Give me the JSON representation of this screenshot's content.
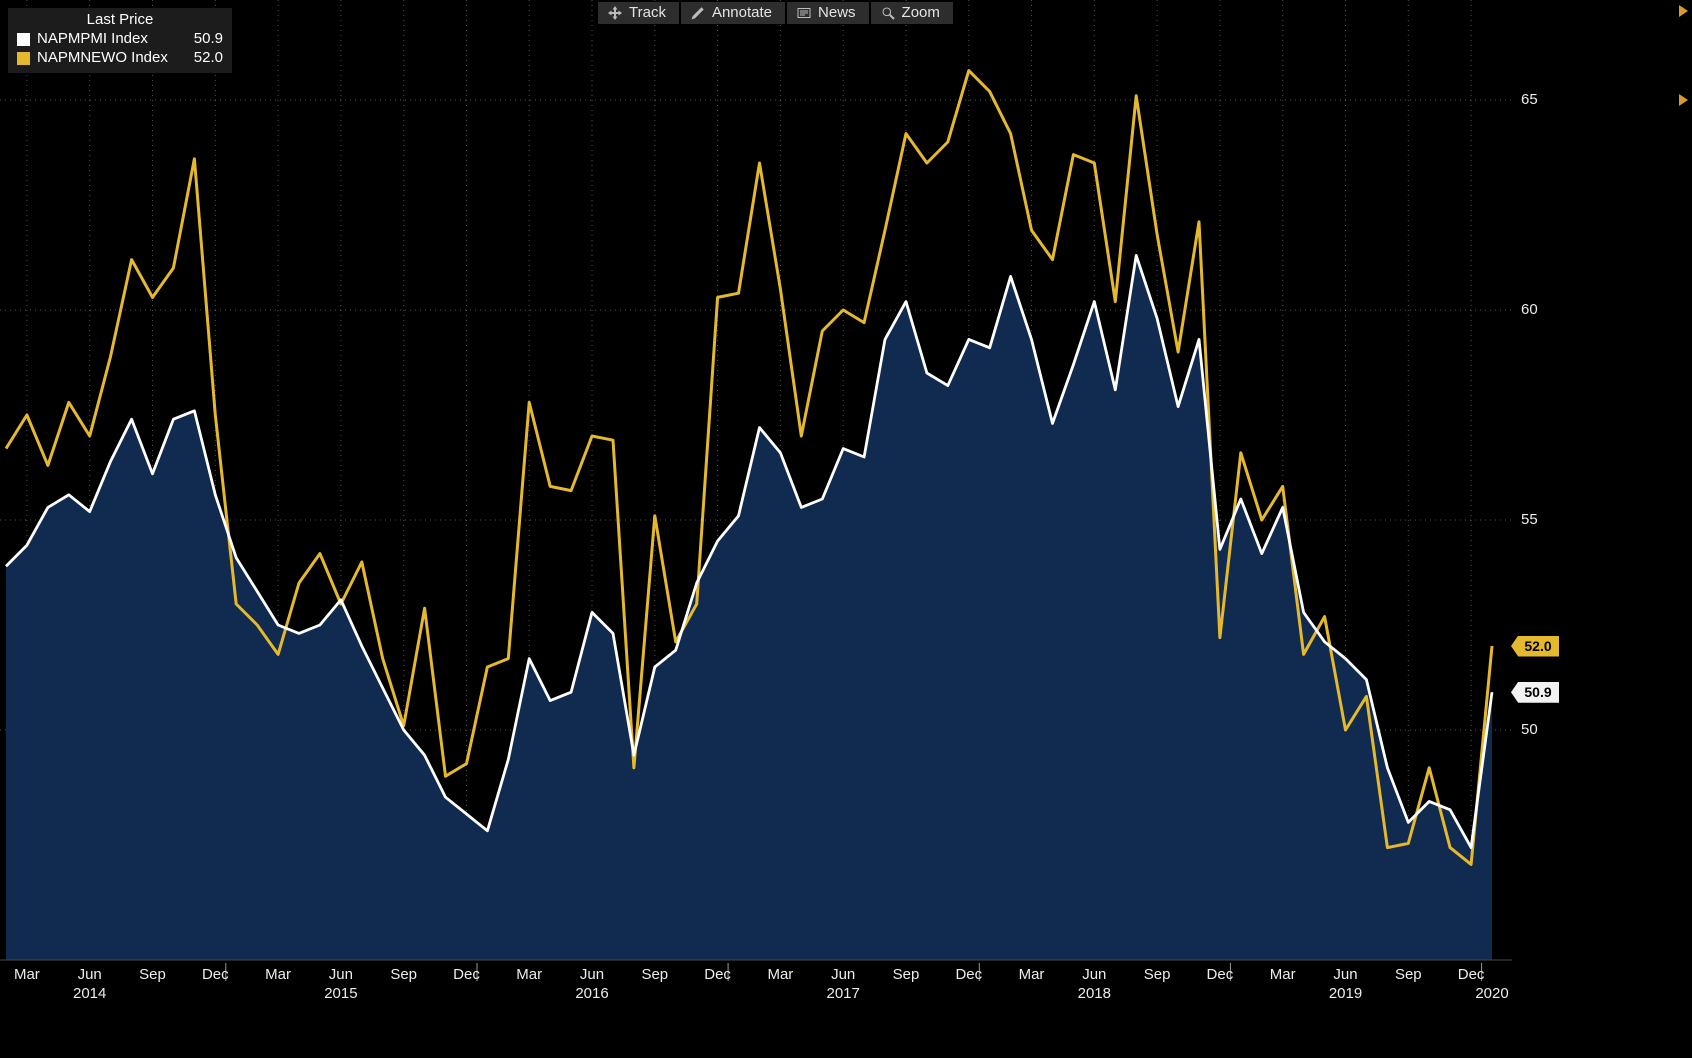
{
  "toolbar": {
    "buttons": [
      {
        "label": "Track",
        "icon": "track-icon"
      },
      {
        "label": "Annotate",
        "icon": "annotate-icon"
      },
      {
        "label": "News",
        "icon": "news-icon"
      },
      {
        "label": "Zoom",
        "icon": "zoom-icon"
      }
    ]
  },
  "legend": {
    "title": "Last Price",
    "series": [
      {
        "name": "NAPMPMI Index",
        "value": "50.9",
        "swatch": "#ffffff"
      },
      {
        "name": "NAPMNEWO Index",
        "value": "52.0",
        "swatch": "#e5b92d"
      }
    ]
  },
  "y_axis": {
    "ticks": [
      65,
      60,
      55,
      50
    ]
  },
  "x_axis": {
    "quarter_labels": [
      "Mar",
      "Jun",
      "Sep",
      "Dec"
    ],
    "years": [
      "2014",
      "2015",
      "2016",
      "2017",
      "2018",
      "2019",
      "2020"
    ]
  },
  "badges": [
    {
      "text": "52.0",
      "bg": "#e5b92d",
      "fg": "#000000"
    },
    {
      "text": "50.9",
      "bg": "#f2f2f2",
      "fg": "#000000"
    }
  ],
  "chart_data": {
    "type": "line",
    "title": "",
    "grid": "dotted",
    "legend_position": "top-left",
    "background": "#000000",
    "yticks": [
      50,
      55,
      60,
      65
    ],
    "ylim": [
      44.5,
      67.4
    ],
    "x_monthly_start": "2014-02",
    "x_monthly_end": "2020-01",
    "months": [
      "2014-02",
      "2014-03",
      "2014-04",
      "2014-05",
      "2014-06",
      "2014-07",
      "2014-08",
      "2014-09",
      "2014-10",
      "2014-11",
      "2014-12",
      "2015-01",
      "2015-02",
      "2015-03",
      "2015-04",
      "2015-05",
      "2015-06",
      "2015-07",
      "2015-08",
      "2015-09",
      "2015-10",
      "2015-11",
      "2015-12",
      "2016-01",
      "2016-02",
      "2016-03",
      "2016-04",
      "2016-05",
      "2016-06",
      "2016-07",
      "2016-08",
      "2016-09",
      "2016-10",
      "2016-11",
      "2016-12",
      "2017-01",
      "2017-02",
      "2017-03",
      "2017-04",
      "2017-05",
      "2017-06",
      "2017-07",
      "2017-08",
      "2017-09",
      "2017-10",
      "2017-11",
      "2017-12",
      "2018-01",
      "2018-02",
      "2018-03",
      "2018-04",
      "2018-05",
      "2018-06",
      "2018-07",
      "2018-08",
      "2018-09",
      "2018-10",
      "2018-11",
      "2018-12",
      "2019-01",
      "2019-02",
      "2019-03",
      "2019-04",
      "2019-05",
      "2019-06",
      "2019-07",
      "2019-08",
      "2019-09",
      "2019-10",
      "2019-11",
      "2019-12",
      "2020-01"
    ],
    "series": [
      {
        "name": "NAPMPMI Index",
        "color": "#ffffff",
        "fill": "#122c52",
        "last": 50.9,
        "values": [
          53.9,
          54.4,
          55.3,
          55.6,
          55.2,
          56.4,
          57.4,
          56.1,
          57.4,
          57.6,
          55.6,
          54.1,
          53.3,
          52.5,
          52.3,
          52.5,
          53.1,
          52.0,
          51.0,
          50.0,
          49.4,
          48.4,
          48.0,
          47.6,
          49.3,
          51.7,
          50.7,
          50.9,
          52.8,
          52.3,
          49.4,
          51.5,
          51.9,
          53.5,
          54.5,
          55.1,
          57.2,
          56.6,
          55.3,
          55.5,
          56.7,
          56.5,
          59.3,
          60.2,
          58.5,
          58.2,
          59.3,
          59.1,
          60.8,
          59.3,
          57.3,
          58.7,
          60.2,
          58.1,
          61.3,
          59.8,
          57.7,
          59.3,
          54.3,
          55.5,
          54.2,
          55.3,
          52.8,
          52.1,
          51.7,
          51.2,
          49.1,
          47.8,
          48.3,
          48.1,
          47.2,
          50.9
        ]
      },
      {
        "name": "NAPMNEWO Index",
        "color": "#e5b92d",
        "fill": null,
        "last": 52.0,
        "values": [
          56.7,
          57.5,
          56.3,
          57.8,
          57.0,
          58.9,
          61.2,
          60.3,
          61.0,
          63.6,
          57.5,
          53.0,
          52.5,
          51.8,
          53.5,
          54.2,
          53.0,
          54.0,
          51.7,
          50.1,
          52.9,
          48.9,
          49.2,
          51.5,
          51.7,
          57.8,
          55.8,
          55.7,
          57.0,
          56.9,
          49.1,
          55.1,
          52.1,
          53.0,
          60.3,
          60.4,
          63.5,
          60.5,
          57.0,
          59.5,
          60.0,
          59.7,
          61.9,
          64.2,
          63.5,
          64.0,
          65.7,
          65.2,
          64.2,
          61.9,
          61.2,
          63.7,
          63.5,
          60.2,
          65.1,
          61.8,
          59.0,
          62.1,
          52.2,
          56.6,
          55.0,
          55.8,
          51.8,
          52.7,
          50.0,
          50.8,
          47.2,
          47.3,
          49.1,
          47.2,
          46.8,
          52.0
        ]
      }
    ]
  }
}
